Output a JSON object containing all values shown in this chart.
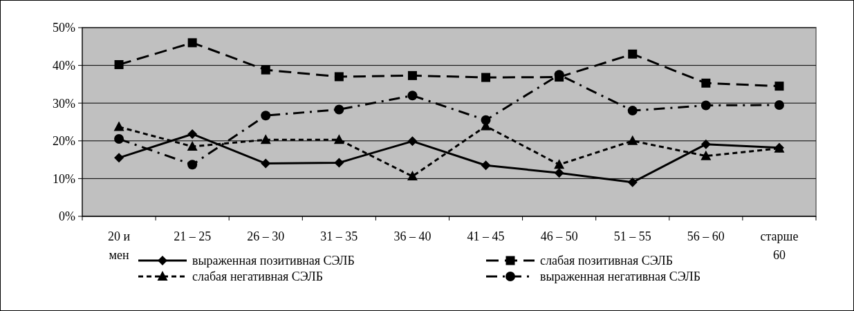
{
  "chart_data": {
    "type": "line",
    "categories": [
      "20 и\nмен",
      "21 – 25",
      "26 – 30",
      "31 – 35",
      "36 – 40",
      "41 – 45",
      "46 – 50",
      "51 – 55",
      "56 – 60",
      "старше\n60"
    ],
    "ylim": [
      0,
      0.5
    ],
    "yticks": [
      {
        "value": 0,
        "label": "0%"
      },
      {
        "value": 0.1,
        "label": "10%"
      },
      {
        "value": 0.2,
        "label": "20%"
      },
      {
        "value": 0.3,
        "label": "30%"
      },
      {
        "value": 0.4,
        "label": "40%"
      },
      {
        "value": 0.5,
        "label": "50%"
      }
    ],
    "grid": "y",
    "legend": "bottom",
    "series": [
      {
        "name": "выраженная позитивная СЭЛБ",
        "color": "#000000",
        "marker": "diamond",
        "line_style": "solid",
        "values": [
          0.155,
          0.218,
          0.14,
          0.142,
          0.199,
          0.135,
          0.115,
          0.09,
          0.191,
          0.182
        ]
      },
      {
        "name": "слабая позитивная СЭЛБ",
        "color": "#000000",
        "marker": "square",
        "line_style": "dashed",
        "values": [
          0.402,
          0.46,
          0.388,
          0.37,
          0.373,
          0.368,
          0.369,
          0.43,
          0.353,
          0.345
        ]
      },
      {
        "name": "слабая негативная СЭЛБ",
        "color": "#000000",
        "marker": "triangle",
        "line_style": "dotted",
        "values": [
          0.237,
          0.185,
          0.203,
          0.203,
          0.106,
          0.239,
          0.137,
          0.2,
          0.16,
          0.18
        ]
      },
      {
        "name": "выраженная негативная СЭЛБ",
        "color": "#000000",
        "marker": "circle",
        "line_style": "dashdot",
        "values": [
          0.205,
          0.137,
          0.267,
          0.283,
          0.32,
          0.255,
          0.375,
          0.28,
          0.294,
          0.295
        ]
      }
    ]
  }
}
